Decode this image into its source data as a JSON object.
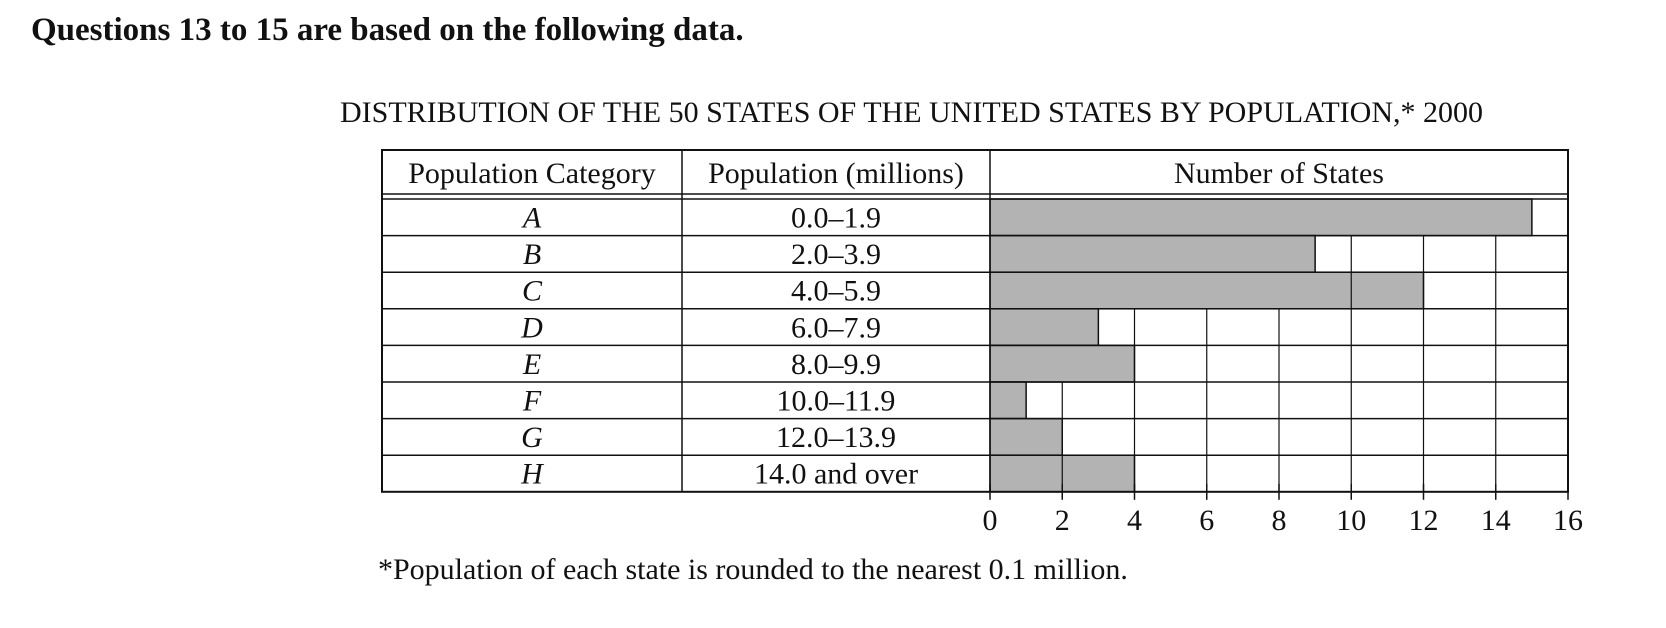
{
  "heading": "Questions 13 to 15 are based on the following data.",
  "chart_data": {
    "type": "bar",
    "orientation": "horizontal",
    "title": "DISTRIBUTION OF THE 50 STATES OF THE UNITED STATES BY POPULATION,* 2000",
    "columns": [
      "Population Category",
      "Population (millions)",
      "Number of States"
    ],
    "categories": [
      "A",
      "B",
      "C",
      "D",
      "E",
      "F",
      "G",
      "H"
    ],
    "ranges": [
      "0.0–1.9",
      "2.0–3.9",
      "4.0–5.9",
      "6.0–7.9",
      "8.0–9.9",
      "10.0–11.9",
      "12.0–13.9",
      "14.0 and over"
    ],
    "values": [
      15,
      9,
      12,
      3,
      4,
      1,
      2,
      4
    ],
    "xlim": [
      0,
      16
    ],
    "xticks": [
      0,
      2,
      4,
      6,
      8,
      10,
      12,
      14,
      16
    ],
    "xlabel": "",
    "ylabel": "",
    "grid": true,
    "bar_color": "#b3b3b3",
    "footnote": "*Population of each state is rounded to the nearest 0.1 million."
  }
}
